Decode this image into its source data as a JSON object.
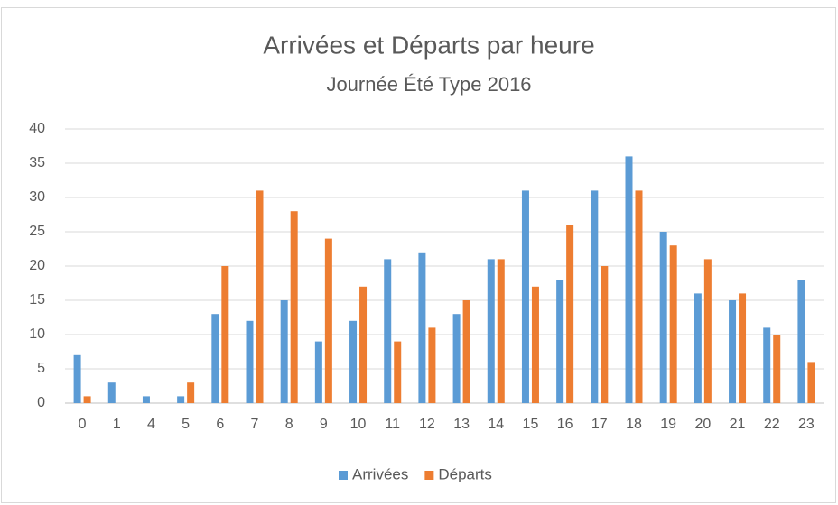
{
  "chart_data": {
    "type": "bar",
    "title": "Arrivées et Départs par heure",
    "subtitle": "Journée Été Type 2016",
    "categories": [
      "0",
      "1",
      "4",
      "5",
      "6",
      "7",
      "8",
      "9",
      "10",
      "11",
      "12",
      "13",
      "14",
      "15",
      "16",
      "17",
      "18",
      "19",
      "20",
      "21",
      "22",
      "23"
    ],
    "series": [
      {
        "name": "Arrivées",
        "color": "#5b9bd5",
        "values": [
          7,
          3,
          1,
          1,
          13,
          12,
          15,
          9,
          12,
          21,
          22,
          13,
          21,
          31,
          18,
          31,
          36,
          25,
          16,
          15,
          11,
          18
        ]
      },
      {
        "name": "Départs",
        "color": "#ed7d31",
        "values": [
          1,
          0,
          0,
          3,
          20,
          31,
          28,
          24,
          17,
          9,
          11,
          15,
          21,
          17,
          26,
          20,
          31,
          23,
          21,
          16,
          10,
          6
        ]
      }
    ],
    "ylim": [
      0,
      40
    ],
    "yticks": [
      0,
      5,
      10,
      15,
      20,
      25,
      30,
      35,
      40
    ],
    "grid": true,
    "legend": "bottom"
  }
}
